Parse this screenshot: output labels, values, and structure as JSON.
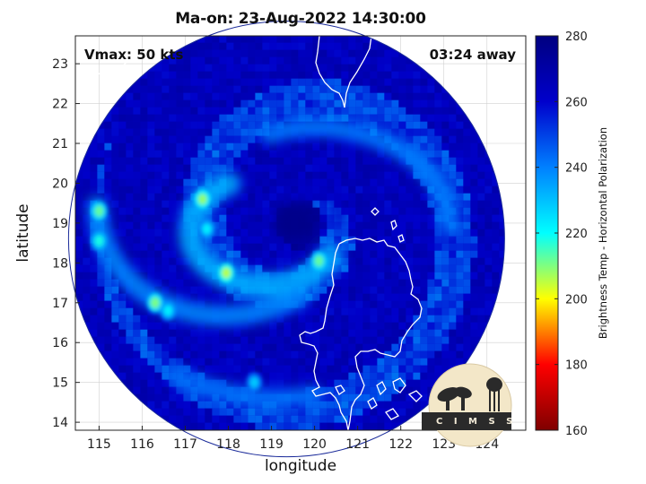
{
  "title": "Ma-on: 23-Aug-2022 14:30:00",
  "vmax": "Vmax: 50 kts",
  "away": "03:24 away",
  "xlabel": "longitude",
  "ylabel": "latitude",
  "colorbar_label": "Brightness Temp - Horizontal Polarization",
  "logo_text": "C I M S S",
  "colors": {
    "background": "#ffffff",
    "coast": "#ffffff",
    "axis": "#222222",
    "grid": "#d0d0d0",
    "colormap": [
      "#7f0000",
      "#ff0000",
      "#ffff00",
      "#00ffff",
      "#0080ff",
      "#0000cc",
      "#000080"
    ]
  },
  "chart_data": {
    "type": "heatmap",
    "x_ticks": [
      "115",
      "116",
      "117",
      "118",
      "119",
      "120",
      "121",
      "122",
      "123",
      "124"
    ],
    "y_ticks": [
      "14",
      "15",
      "16",
      "17",
      "18",
      "19",
      "20",
      "21",
      "22",
      "23"
    ],
    "xlim": [
      114.45,
      124.9
    ],
    "ylim": [
      13.8,
      23.7
    ],
    "colorbar": {
      "ticks": [
        "160",
        "180",
        "200",
        "220",
        "240",
        "260",
        "280"
      ],
      "range": [
        160,
        280
      ]
    },
    "storm_center": {
      "lon": 119.55,
      "lat": 19.05
    },
    "swath_center": {
      "lon": 119.35,
      "lat": 18.6
    },
    "swath_radius_deg": 5.05,
    "cold_spots_k": [
      {
        "lon": 115.0,
        "lat": 19.3,
        "value": 212
      },
      {
        "lon": 115.0,
        "lat": 18.55,
        "value": 218
      },
      {
        "lon": 117.4,
        "lat": 19.6,
        "value": 208
      },
      {
        "lon": 117.5,
        "lat": 18.85,
        "value": 222
      },
      {
        "lon": 117.95,
        "lat": 17.75,
        "value": 205
      },
      {
        "lon": 116.3,
        "lat": 17.0,
        "value": 210
      },
      {
        "lon": 116.6,
        "lat": 16.8,
        "value": 222
      },
      {
        "lon": 120.1,
        "lat": 18.05,
        "value": 212
      },
      {
        "lon": 118.6,
        "lat": 15.0,
        "value": 228
      }
    ]
  }
}
